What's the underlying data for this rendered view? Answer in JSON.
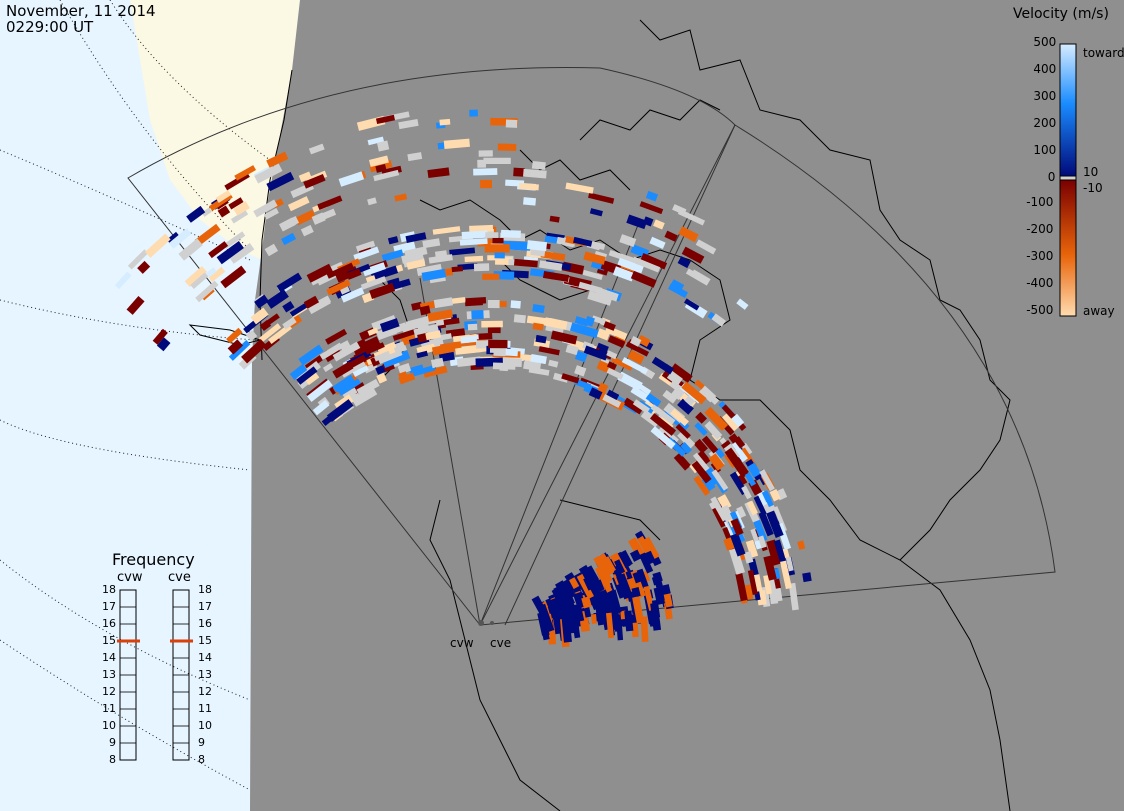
{
  "header": {
    "date": "November, 11 2014",
    "time": "0229:00 UT"
  },
  "legend": {
    "title": "Velocity (m/s)",
    "toward_label": "toward",
    "away_label": "away",
    "ticks_left": [
      "500",
      "400",
      "300",
      "200",
      "100",
      "0",
      "-100",
      "-200",
      "-300",
      "-400",
      "-500"
    ],
    "ticks_right": [
      "10",
      "-10"
    ],
    "colors": {
      "toward_max": "#d6ecff",
      "toward_mid": "#1a8cff",
      "toward_low": "#000a7a",
      "away_low": "#7a0000",
      "away_mid": "#e8640a",
      "away_max": "#ffdcb0",
      "groundscatter": "#d0d0d0"
    }
  },
  "frequency": {
    "title": "Frequency",
    "radars": [
      "cvw",
      "cve"
    ],
    "ticks": [
      "18",
      "17",
      "16",
      "15",
      "14",
      "13",
      "12",
      "11",
      "10",
      "9",
      "8"
    ],
    "values_mhz": [
      15,
      15
    ],
    "marker_color": "#d9400a"
  },
  "sites": [
    "cvw",
    "cve"
  ],
  "map": {
    "background": "#8f8f8f",
    "ocean": "#e6f5ff",
    "land_outside": "#fbf8e4"
  }
}
